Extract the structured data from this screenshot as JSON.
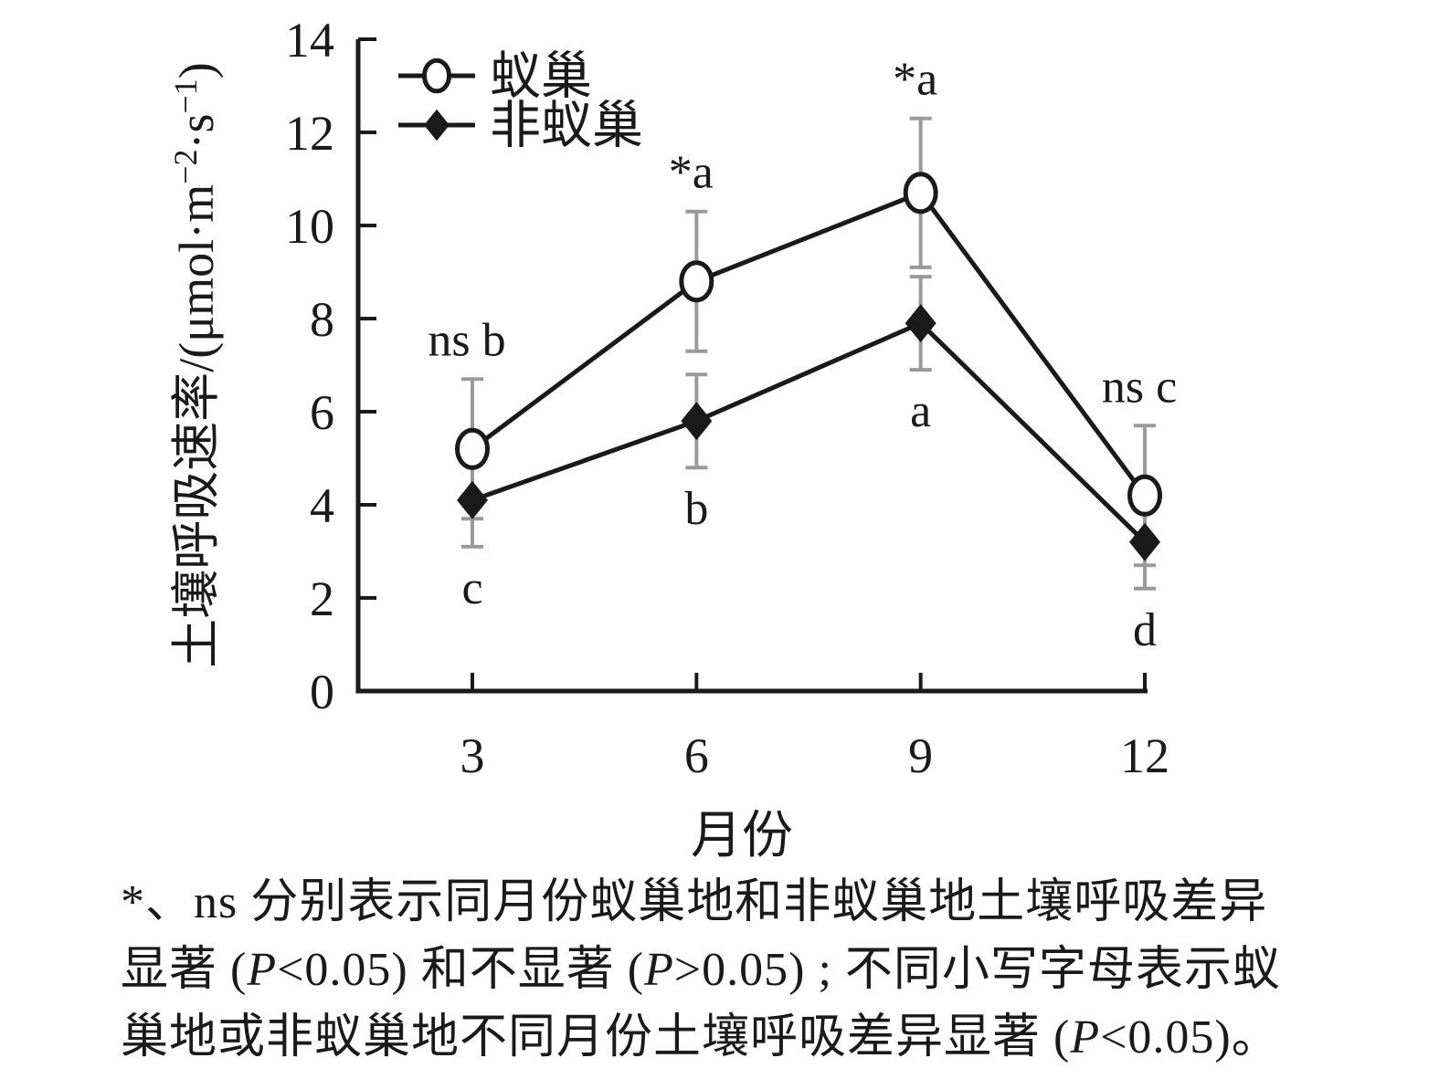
{
  "figure": {
    "background": "#ffffff",
    "ink_color": "#1a1a1a",
    "error_bar_color": "#9a9a9a"
  },
  "chart_data": {
    "type": "line",
    "x": [
      3,
      6,
      9,
      12
    ],
    "x_tick_labels": [
      "3",
      "6",
      "9",
      "12"
    ],
    "xlabel": "月份",
    "ylabel_plain": "土壤呼吸速率/(μmol·m−2·s−1)",
    "ylabel_segments": [
      {
        "text": "土壤呼吸速率/(μmol·m"
      },
      {
        "text": "−2",
        "sup": true
      },
      {
        "text": "·s"
      },
      {
        "text": "−1",
        "sup": true
      },
      {
        "text": ")"
      }
    ],
    "ylim": [
      0,
      14
    ],
    "yticks": [
      0,
      2,
      4,
      6,
      8,
      10,
      12,
      14
    ],
    "grid": false,
    "legend_position": "top-left-inside",
    "series": [
      {
        "name": "蚁巢",
        "marker": "open-circle",
        "values": [
          5.2,
          8.8,
          10.7,
          4.2
        ],
        "errors": [
          1.5,
          1.5,
          1.6,
          1.5
        ],
        "labels_above": [
          "ns b",
          "*a",
          "*a",
          "ns c"
        ]
      },
      {
        "name": "非蚁巢",
        "marker": "filled-diamond",
        "values": [
          4.1,
          5.8,
          7.9,
          3.2
        ],
        "errors": [
          1.0,
          1.0,
          1.0,
          1.0
        ],
        "labels_below": [
          "c",
          "b",
          "a",
          "d"
        ]
      }
    ]
  },
  "footnote": {
    "lines": [
      [
        {
          "text": "*、ns 分别表示同月份蚁巢地和非蚁巢地土壤呼吸差异"
        }
      ],
      [
        {
          "text": "显著 ("
        },
        {
          "text": "P",
          "italic": true
        },
        {
          "text": "<0.05) 和不显著 ("
        },
        {
          "text": "P",
          "italic": true
        },
        {
          "text": ">0.05) ; 不同小写字母表示蚁"
        }
      ],
      [
        {
          "text": "巢地或非蚁巢地不同月份土壤呼吸差异显著 ("
        },
        {
          "text": "P",
          "italic": true
        },
        {
          "text": "<0.05)。"
        }
      ]
    ]
  }
}
